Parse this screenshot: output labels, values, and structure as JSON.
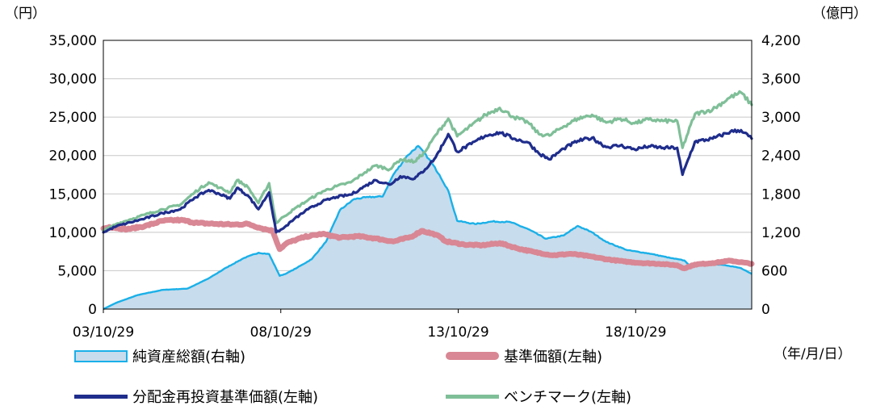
{
  "chart_data": {
    "type": "line",
    "left_axis": {
      "unit": "（円）",
      "ylim": [
        0,
        35000
      ],
      "ticks": [
        "0",
        "5,000",
        "10,000",
        "15,000",
        "20,000",
        "25,000",
        "30,000",
        "35,000"
      ]
    },
    "right_axis": {
      "unit": "（億円）",
      "ylim": [
        0,
        4200
      ],
      "ticks": [
        "0",
        "600",
        "1,200",
        "1,800",
        "2,400",
        "3,000",
        "3,600",
        "4,200"
      ]
    },
    "x_axis": {
      "unit": "（年/月/日）",
      "ticks": [
        "03/10/29",
        "08/10/29",
        "13/10/29",
        "18/10/29"
      ],
      "range": [
        2003.83,
        2022.1
      ]
    },
    "grid": true,
    "series": [
      {
        "name": "純資産総額(右軸)",
        "axis": "right",
        "type": "area",
        "color": "#1ab0e8",
        "fill": "#c7dcec",
        "x": [
          2003.83,
          2004.2,
          2004.8,
          2005.5,
          2006.2,
          2006.8,
          2007.3,
          2007.8,
          2008.2,
          2008.5,
          2008.8,
          2009.0,
          2009.3,
          2009.7,
          2010.1,
          2010.5,
          2010.9,
          2011.3,
          2011.7,
          2012.0,
          2012.4,
          2012.7,
          2013.0,
          2013.3,
          2013.55,
          2013.8,
          2014.3,
          2014.8,
          2015.3,
          2015.8,
          2016.3,
          2016.8,
          2017.2,
          2017.6,
          2018.0,
          2018.6,
          2019.2,
          2019.8,
          2020.2,
          2020.4,
          2020.8,
          2021.3,
          2021.8,
          2022.1
        ],
        "values": [
          0,
          100,
          220,
          300,
          320,
          480,
          650,
          800,
          880,
          860,
          520,
          560,
          650,
          780,
          1050,
          1550,
          1720,
          1750,
          1760,
          2100,
          2400,
          2550,
          2350,
          2100,
          1850,
          1380,
          1330,
          1370,
          1360,
          1250,
          1100,
          1150,
          1300,
          1200,
          1050,
          920,
          870,
          800,
          760,
          660,
          720,
          690,
          640,
          550
        ]
      },
      {
        "name": "基準価額(左軸)",
        "axis": "left",
        "color": "#d98794",
        "x": [
          2003.83,
          2004.0,
          2004.5,
          2005.0,
          2005.5,
          2006.0,
          2006.5,
          2007.0,
          2007.5,
          2007.9,
          2008.3,
          2008.6,
          2008.8,
          2009.0,
          2009.5,
          2010.0,
          2010.5,
          2011.0,
          2011.5,
          2012.0,
          2012.5,
          2012.8,
          2013.2,
          2013.5,
          2014.0,
          2014.5,
          2015.0,
          2015.5,
          2016.0,
          2016.5,
          2017.0,
          2017.5,
          2018.0,
          2018.5,
          2019.0,
          2019.5,
          2020.0,
          2020.2,
          2020.5,
          2021.0,
          2021.5,
          2022.1
        ],
        "values": [
          10500,
          10700,
          10400,
          10800,
          11500,
          11600,
          11200,
          11100,
          11000,
          11100,
          10500,
          10200,
          7800,
          8600,
          9400,
          9800,
          9300,
          9500,
          9200,
          8800,
          9400,
          10200,
          9700,
          8800,
          8400,
          8300,
          8600,
          7900,
          7400,
          7000,
          7200,
          6900,
          6500,
          6200,
          6000,
          5900,
          5700,
          5300,
          5800,
          6000,
          6300,
          5900
        ]
      },
      {
        "name": "分配金再投資基準価額(左軸)",
        "axis": "left",
        "color": "#1f2d8c",
        "x": [
          2003.83,
          2004.2,
          2004.6,
          2005.0,
          2005.5,
          2006.0,
          2006.4,
          2006.8,
          2007.1,
          2007.4,
          2007.6,
          2007.9,
          2008.2,
          2008.5,
          2008.7,
          2008.9,
          2009.2,
          2009.6,
          2010.0,
          2010.4,
          2010.8,
          2011.2,
          2011.5,
          2011.9,
          2012.2,
          2012.6,
          2012.9,
          2013.2,
          2013.55,
          2013.8,
          2014.2,
          2014.6,
          2015.0,
          2015.4,
          2015.8,
          2016.1,
          2016.4,
          2016.8,
          2017.2,
          2017.6,
          2018.0,
          2018.4,
          2018.8,
          2019.2,
          2019.6,
          2020.0,
          2020.15,
          2020.5,
          2021.0,
          2021.5,
          2021.8,
          2022.1
        ],
        "values": [
          10000,
          10800,
          11300,
          11800,
          12500,
          13000,
          14500,
          15500,
          15000,
          14400,
          15800,
          14800,
          13000,
          15200,
          10000,
          10500,
          11700,
          13000,
          14000,
          14600,
          14900,
          16000,
          16800,
          16200,
          17300,
          17000,
          18200,
          19800,
          22800,
          20500,
          21500,
          22600,
          23000,
          22200,
          21700,
          20300,
          19500,
          20900,
          21900,
          22300,
          21100,
          21300,
          20800,
          21200,
          21000,
          21000,
          17500,
          21800,
          22200,
          23100,
          23300,
          22200
        ]
      },
      {
        "name": "ベンチマーク(左軸)",
        "axis": "left",
        "color": "#7fbf98",
        "x": [
          2003.83,
          2004.2,
          2004.6,
          2005.0,
          2005.5,
          2006.0,
          2006.4,
          2006.8,
          2007.1,
          2007.4,
          2007.6,
          2007.9,
          2008.2,
          2008.5,
          2008.7,
          2008.9,
          2009.2,
          2009.6,
          2010.0,
          2010.4,
          2010.8,
          2011.2,
          2011.5,
          2011.9,
          2012.2,
          2012.6,
          2012.9,
          2013.2,
          2013.55,
          2013.8,
          2014.2,
          2014.6,
          2015.0,
          2015.4,
          2015.8,
          2016.1,
          2016.4,
          2016.8,
          2017.2,
          2017.6,
          2018.0,
          2018.4,
          2018.8,
          2019.2,
          2019.6,
          2020.0,
          2020.15,
          2020.5,
          2021.0,
          2021.5,
          2021.8,
          2022.1
        ],
        "values": [
          10200,
          11100,
          11700,
          12300,
          13000,
          13600,
          15200,
          16500,
          15800,
          15200,
          16800,
          15900,
          13800,
          16400,
          11200,
          12000,
          13000,
          14200,
          15300,
          16000,
          16500,
          17800,
          18700,
          18200,
          19500,
          19200,
          20500,
          22700,
          24800,
          22500,
          23900,
          25300,
          26200,
          25000,
          24300,
          22800,
          22600,
          23800,
          24800,
          25300,
          24300,
          24800,
          24200,
          24700,
          24500,
          24500,
          21000,
          25400,
          26000,
          27600,
          28200,
          26600
        ]
      }
    ]
  },
  "legend": {
    "items": [
      {
        "label": "純資産総額(右軸)"
      },
      {
        "label": "基準価額(左軸)"
      },
      {
        "label": "分配金再投資基準価額(左軸)"
      },
      {
        "label": "ベンチマーク(左軸)"
      }
    ]
  },
  "colors": {
    "nav_fill": "#c7dcec",
    "nav_line": "#1ab0e8",
    "base": "#d98794",
    "reinvest": "#1f2d8c",
    "benchmark": "#7fbf98",
    "grid": "#c8c8c8"
  }
}
